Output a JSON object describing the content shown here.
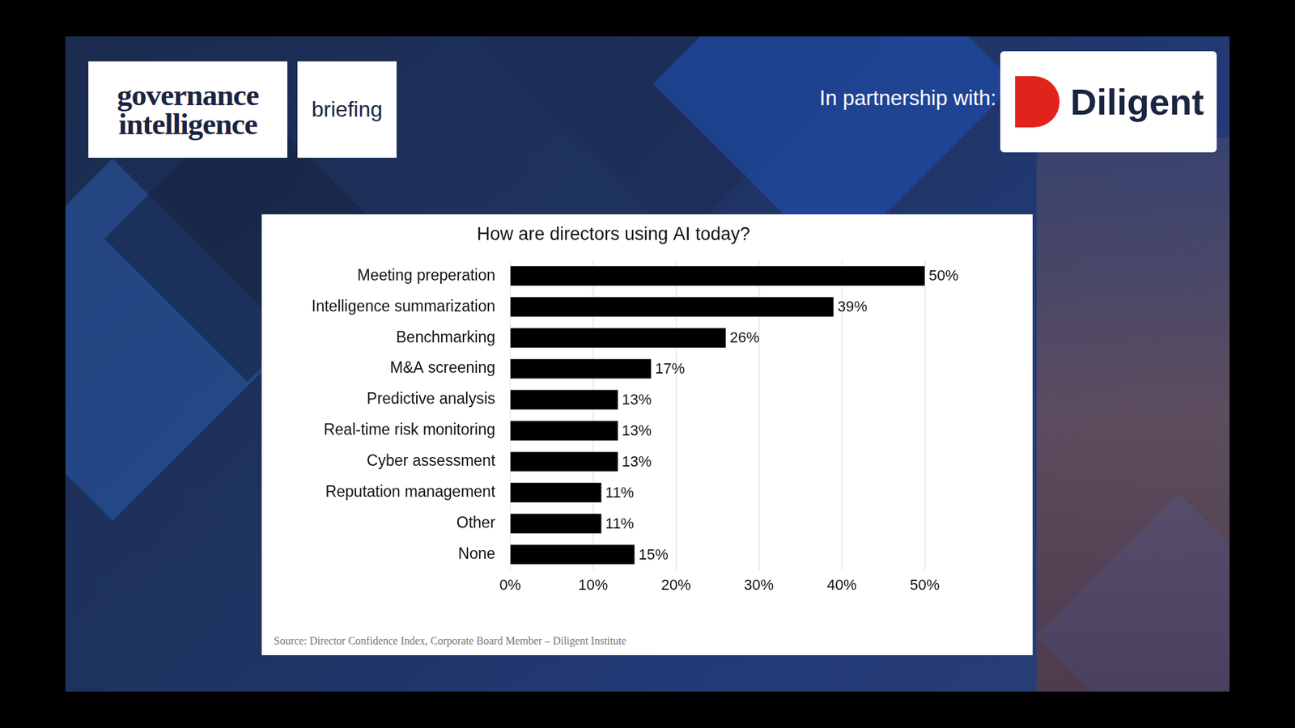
{
  "slide": {
    "logo": "governance intelligence",
    "tag": "briefing",
    "partner_text": "In partnership with:",
    "partner": "Diligent"
  },
  "chart_data": {
    "type": "bar",
    "orientation": "horizontal",
    "title": "How are directors using AI today?",
    "source": "Source: Director Confidence Index, Corporate Board Member – Diligent Institute",
    "categories": [
      "Meeting preperation",
      "Intelligence summarization",
      "Benchmarking",
      "M&A screening",
      "Predictive analysis",
      "Real-time risk monitoring",
      "Cyber assessment",
      "Reputation management",
      "Other",
      "None"
    ],
    "values": [
      50,
      39,
      26,
      17,
      13,
      13,
      13,
      11,
      11,
      15
    ],
    "value_labels": [
      "50%",
      "39%",
      "26%",
      "17%",
      "13%",
      "13%",
      "13%",
      "11%",
      "11%",
      "15%"
    ],
    "data_labels": true,
    "color": "#000000",
    "xlim": [
      0,
      50
    ],
    "xticks": [
      {
        "value": 0,
        "label": "0%"
      },
      {
        "value": 10,
        "label": "10%"
      },
      {
        "value": 20,
        "label": "20%"
      },
      {
        "value": 30,
        "label": "30%"
      },
      {
        "value": 40,
        "label": "40%"
      },
      {
        "value": 50,
        "label": "50%"
      }
    ],
    "grid": true
  }
}
